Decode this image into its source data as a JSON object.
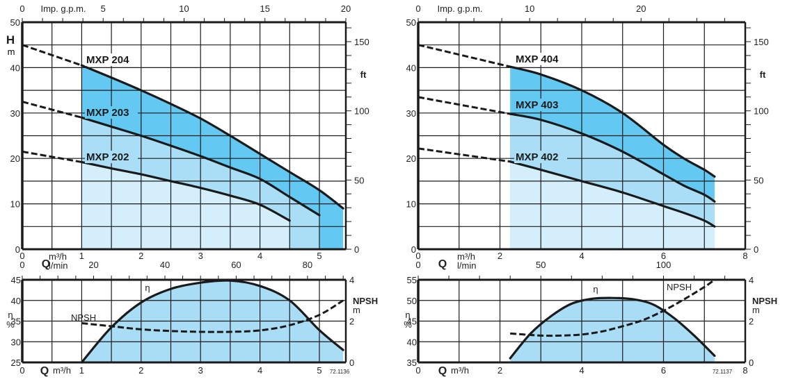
{
  "colors": {
    "band_dark": "#63c8f2",
    "band_mid": "#a9def6",
    "band_light": "#d4effb",
    "eff_fill": "#a9dcf5",
    "line": "#1a1a1a",
    "grid": "#1a1a1a"
  },
  "chart_data": [
    {
      "id": "mxp20x-head",
      "type": "line",
      "title": "",
      "xlabel": "Q m³/h",
      "xlabel_q": "Q",
      "xlabel_unit": "m³/h",
      "xlabel_unit2": "l/min",
      "ylabel": "H",
      "ylabel_unit": "m",
      "y2label": "ft",
      "top_axis_label": "Imp. g.p.m.",
      "xlim": [
        0,
        5.5
      ],
      "ylim": [
        0,
        50
      ],
      "x_ticks": [
        "0",
        "1",
        "2",
        "3",
        "4",
        "5"
      ],
      "x_tick_values": [
        0,
        1,
        2,
        3,
        4,
        5
      ],
      "y_ticks": [
        "0",
        "10",
        "20",
        "30",
        "40",
        "50"
      ],
      "y_tick_values": [
        0,
        10,
        20,
        30,
        40,
        50
      ],
      "top_ticks": [
        "0",
        "5",
        "10",
        "15",
        "20"
      ],
      "top_tick_values": [
        0,
        5,
        10,
        15,
        20
      ],
      "lpm_ticks": [
        "0",
        "20",
        "40",
        "60",
        "80"
      ],
      "lpm_tick_values": [
        0,
        20,
        40,
        60,
        80
      ],
      "ft_ticks": [
        "0",
        "50",
        "100",
        "150"
      ],
      "ft_tick_values": [
        0,
        50,
        100,
        150
      ],
      "grid": true,
      "series": [
        {
          "name": "MXP 204",
          "dashed_x": [
            0,
            1
          ],
          "dashed_y": [
            45,
            40.5
          ],
          "x": [
            1,
            1.5,
            2,
            2.5,
            3,
            3.5,
            4,
            4.5,
            5,
            5.4
          ],
          "y": [
            40.5,
            37.8,
            35,
            32,
            28.8,
            25,
            21,
            17,
            13,
            9
          ],
          "end_x": 5.4,
          "band": "dark"
        },
        {
          "name": "MXP 203",
          "dashed_x": [
            0,
            1
          ],
          "dashed_y": [
            32.5,
            29
          ],
          "x": [
            1,
            1.5,
            2,
            2.5,
            3,
            3.5,
            4,
            4.5,
            5
          ],
          "y": [
            29,
            27,
            25,
            22.8,
            20.5,
            18,
            15.5,
            11.5,
            7.5
          ],
          "end_x": 5,
          "band": "mid"
        },
        {
          "name": "MXP 202",
          "dashed_x": [
            0,
            1
          ],
          "dashed_y": [
            21.5,
            19.2
          ],
          "x": [
            1,
            1.5,
            2,
            2.5,
            3,
            3.5,
            4,
            4.5
          ],
          "y": [
            19.2,
            17.8,
            16.5,
            15,
            13.5,
            11.8,
            9.8,
            6.3
          ],
          "end_x": 4.5,
          "band": "light"
        }
      ]
    },
    {
      "id": "mxp20x-eff",
      "type": "line",
      "xlabel_q": "Q",
      "xlabel_unit": "m³/h",
      "ylabel": "η",
      "ylabel_unit": "%",
      "y2label": "NPSH",
      "y2label_unit": "m",
      "xlim": [
        0,
        5.5
      ],
      "ylim": [
        25,
        45
      ],
      "y2lim": [
        0,
        4
      ],
      "x_ticks": [
        "0",
        "1",
        "2",
        "3",
        "4",
        "5"
      ],
      "x_tick_values": [
        0,
        1,
        2,
        3,
        4,
        5
      ],
      "y_ticks": [
        "25",
        "30",
        "35",
        "40",
        "45"
      ],
      "y_tick_values": [
        25,
        30,
        35,
        40,
        45
      ],
      "y2_ticks": [
        "0",
        "2",
        "4"
      ],
      "y2_tick_values": [
        0,
        2,
        4
      ],
      "eta_label": "η",
      "npsh_label": "NPSH",
      "code": "72.1136",
      "grid": true,
      "series": [
        {
          "name": "η",
          "x": [
            1,
            1.5,
            2,
            2.5,
            3,
            3.5,
            4,
            4.5,
            5,
            5.4
          ],
          "y": [
            25,
            33.5,
            39.5,
            42.8,
            44.3,
            44.8,
            43.5,
            40,
            32.8,
            28
          ]
        },
        {
          "name": "NPSH",
          "axis": "y2",
          "x": [
            1,
            1.5,
            2,
            2.5,
            3,
            3.5,
            4,
            4.5,
            5,
            5.4
          ],
          "y": [
            1.9,
            1.75,
            1.6,
            1.52,
            1.48,
            1.48,
            1.55,
            1.8,
            2.3,
            3.0
          ]
        }
      ]
    },
    {
      "id": "mxp40x-head",
      "type": "line",
      "xlabel_q": "Q",
      "xlabel_unit": "m³/h",
      "xlabel_unit2": "l/min",
      "ylabel": "H",
      "ylabel_unit": "m",
      "y2label": "ft",
      "top_axis_label": "Imp. g.p.m.",
      "xlim": [
        0,
        8
      ],
      "ylim": [
        0,
        50
      ],
      "x_ticks": [
        "0",
        "2",
        "4",
        "6",
        "8"
      ],
      "x_tick_values": [
        0,
        2,
        4,
        6,
        8
      ],
      "y_ticks": [
        "0",
        "10",
        "20",
        "30",
        "40",
        "50"
      ],
      "y_tick_values": [
        0,
        10,
        20,
        30,
        40,
        50
      ],
      "top_ticks": [
        "0",
        "10",
        "20"
      ],
      "top_tick_values": [
        0,
        10,
        20
      ],
      "lpm_ticks": [
        "0",
        "50",
        "100"
      ],
      "lpm_tick_values": [
        0,
        50,
        100
      ],
      "ft_ticks": [
        "0",
        "50",
        "100",
        "150"
      ],
      "ft_tick_values": [
        0,
        50,
        100,
        150
      ],
      "grid": true,
      "series": [
        {
          "name": "MXP 404",
          "dashed_x": [
            0,
            2.25
          ],
          "dashed_y": [
            45,
            40.2
          ],
          "x": [
            2.25,
            3,
            4,
            5,
            6,
            6.5,
            7,
            7.25
          ],
          "y": [
            40.2,
            38.5,
            35,
            30,
            23,
            20,
            17.5,
            16
          ],
          "end_x": 7.25,
          "band": "dark"
        },
        {
          "name": "MXP 403",
          "dashed_x": [
            0,
            2.25
          ],
          "dashed_y": [
            33.5,
            29.8
          ],
          "x": [
            2.25,
            3,
            4,
            5,
            6,
            6.5,
            7,
            7.25
          ],
          "y": [
            29.8,
            28.5,
            25.5,
            21.5,
            16.5,
            14,
            12,
            10.5
          ],
          "end_x": 7.25,
          "band": "mid"
        },
        {
          "name": "MXP 402",
          "dashed_x": [
            0,
            2.25
          ],
          "dashed_y": [
            22.2,
            19.3
          ],
          "x": [
            2.25,
            3,
            4,
            5,
            6,
            6.5,
            7,
            7.25
          ],
          "y": [
            19.3,
            17.5,
            15,
            12.5,
            9.5,
            8,
            6.3,
            5
          ],
          "end_x": 7.25,
          "band": "light"
        }
      ]
    },
    {
      "id": "mxp40x-eff",
      "type": "line",
      "xlabel_q": "Q",
      "xlabel_unit": "m³/h",
      "ylabel": "η",
      "ylabel_unit": "%",
      "y2label": "NPSH",
      "y2label_unit": "m",
      "xlim": [
        0,
        8
      ],
      "ylim": [
        35,
        55
      ],
      "y2lim": [
        0,
        4
      ],
      "x_ticks": [
        "0",
        "2",
        "4",
        "6",
        "8"
      ],
      "x_tick_values": [
        0,
        2,
        4,
        6,
        8
      ],
      "y_ticks": [
        "35",
        "40",
        "45",
        "50",
        "55"
      ],
      "y_tick_values": [
        35,
        40,
        45,
        50,
        55
      ],
      "y2_ticks": [
        "0",
        "2",
        "4"
      ],
      "y2_tick_values": [
        0,
        2,
        4
      ],
      "eta_label": "η",
      "npsh_label": "NPSH",
      "code": "72.1137",
      "grid": true,
      "series": [
        {
          "name": "η",
          "x": [
            2.25,
            2.75,
            3.25,
            3.75,
            4.25,
            4.75,
            5.25,
            5.75,
            6.25,
            6.75,
            7.25
          ],
          "y": [
            36,
            42,
            46.2,
            49.2,
            50.4,
            50.6,
            50.3,
            49,
            45.8,
            41.5,
            36.6
          ]
        },
        {
          "name": "NPSH",
          "axis": "y2",
          "x": [
            2.25,
            3,
            3.5,
            4,
            4.5,
            5,
            5.5,
            6,
            6.5,
            7,
            7.25
          ],
          "y": [
            1.4,
            1.3,
            1.3,
            1.35,
            1.5,
            1.75,
            2.05,
            2.5,
            3.05,
            3.65,
            4.0
          ]
        }
      ]
    }
  ]
}
